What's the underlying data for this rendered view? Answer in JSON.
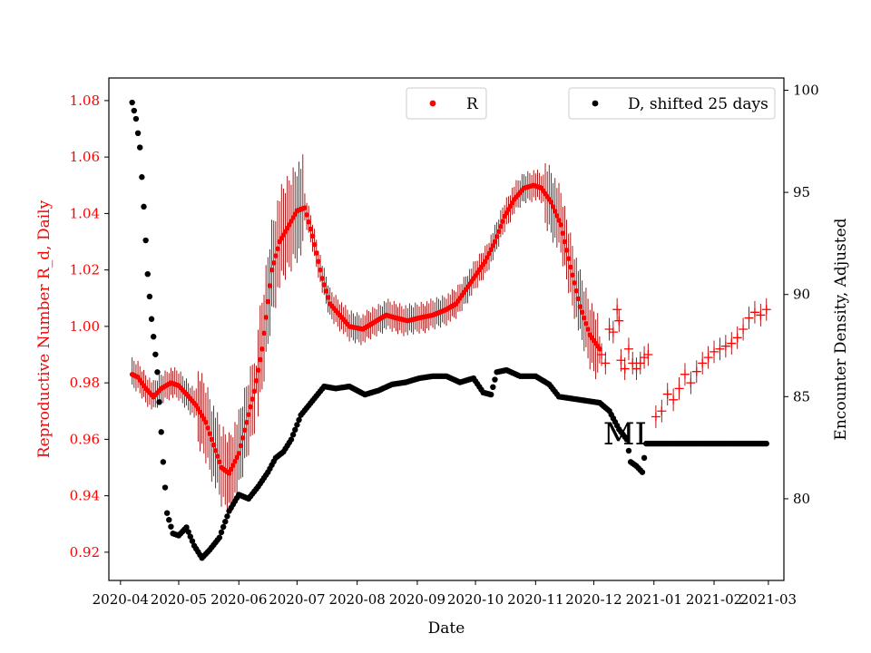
{
  "chart_data": {
    "type": "scatter",
    "title": "",
    "xlabel": "Date",
    "ylabel_left": "Reproductive Number R_d, Daily",
    "ylabel_right": "Encounter Density, Adjusted",
    "x_range": [
      "2020-03-26",
      "2021-03-09"
    ],
    "ylim_left": [
      0.91,
      1.088
    ],
    "ylim_right": [
      76.0,
      100.6
    ],
    "x_ticks": [
      "2020-04",
      "2020-05",
      "2020-06",
      "2020-07",
      "2020-08",
      "2020-09",
      "2020-10",
      "2020-11",
      "2020-12",
      "2021-01",
      "2021-02",
      "2021-03"
    ],
    "y_ticks_left": [
      "0.92",
      "0.94",
      "0.96",
      "0.98",
      "1.00",
      "1.02",
      "1.04",
      "1.06",
      "1.08"
    ],
    "y_ticks_right": [
      "80",
      "85",
      "90",
      "95",
      "100"
    ],
    "colors": {
      "r_series": "#ff0000",
      "r_error": "#a00000",
      "d_series": "#000000",
      "left_axis": "#ff0000"
    },
    "annotation": "MI",
    "annotation_at": {
      "x": "2020-12-17",
      "y": 0.962
    },
    "legend_r": {
      "label": "R",
      "placement": "upper-center"
    },
    "legend_d": {
      "label": "D, shifted 25 days",
      "placement": "upper-right"
    },
    "series_r": {
      "name": "R",
      "axis": "left",
      "anchors": [
        [
          "2020-04-07",
          0.983
        ],
        [
          "2020-04-10",
          0.982
        ],
        [
          "2020-04-14",
          0.978
        ],
        [
          "2020-04-18",
          0.975
        ],
        [
          "2020-04-22",
          0.978
        ],
        [
          "2020-04-27",
          0.98
        ],
        [
          "2020-05-01",
          0.979
        ],
        [
          "2020-05-05",
          0.976
        ],
        [
          "2020-05-10",
          0.972
        ],
        [
          "2020-05-15",
          0.966
        ],
        [
          "2020-05-19",
          0.958
        ],
        [
          "2020-05-23",
          0.95
        ],
        [
          "2020-05-27",
          0.948
        ],
        [
          "2020-06-01",
          0.955
        ],
        [
          "2020-06-05",
          0.966
        ],
        [
          "2020-06-09",
          0.977
        ],
        [
          "2020-06-13",
          0.992
        ],
        [
          "2020-06-18",
          1.02
        ],
        [
          "2020-06-22",
          1.03
        ],
        [
          "2020-06-27",
          1.036
        ],
        [
          "2020-07-01",
          1.041
        ],
        [
          "2020-07-05",
          1.042
        ],
        [
          "2020-07-09",
          1.032
        ],
        [
          "2020-07-14",
          1.017
        ],
        [
          "2020-07-18",
          1.008
        ],
        [
          "2020-07-23",
          1.004
        ],
        [
          "2020-07-28",
          1.0
        ],
        [
          "2020-08-04",
          0.999
        ],
        [
          "2020-08-11",
          1.002
        ],
        [
          "2020-08-16",
          1.004
        ],
        [
          "2020-08-21",
          1.003
        ],
        [
          "2020-08-27",
          1.002
        ],
        [
          "2020-09-02",
          1.003
        ],
        [
          "2020-09-09",
          1.004
        ],
        [
          "2020-09-16",
          1.006
        ],
        [
          "2020-09-21",
          1.008
        ],
        [
          "2020-09-26",
          1.013
        ],
        [
          "2020-10-01",
          1.018
        ],
        [
          "2020-10-06",
          1.023
        ],
        [
          "2020-10-11",
          1.03
        ],
        [
          "2020-10-16",
          1.039
        ],
        [
          "2020-10-21",
          1.045
        ],
        [
          "2020-10-26",
          1.049
        ],
        [
          "2020-10-31",
          1.05
        ],
        [
          "2020-11-04",
          1.049
        ],
        [
          "2020-11-09",
          1.044
        ],
        [
          "2020-11-14",
          1.036
        ],
        [
          "2020-11-19",
          1.021
        ],
        [
          "2020-11-24",
          1.007
        ],
        [
          "2020-11-29",
          0.997
        ],
        [
          "2020-12-04",
          0.992
        ]
      ],
      "error_band": 0.006,
      "crosses": [
        [
          "2020-12-05",
          0.99
        ],
        [
          "2020-12-07",
          0.987
        ],
        [
          "2020-12-09",
          0.999
        ],
        [
          "2020-12-11",
          0.998
        ],
        [
          "2020-12-13",
          1.006
        ],
        [
          "2020-12-14",
          1.002
        ],
        [
          "2020-12-15",
          0.988
        ],
        [
          "2020-12-17",
          0.985
        ],
        [
          "2020-12-19",
          0.992
        ],
        [
          "2020-12-21",
          0.987
        ],
        [
          "2020-12-23",
          0.985
        ],
        [
          "2020-12-25",
          0.987
        ],
        [
          "2020-12-27",
          0.989
        ],
        [
          "2020-12-29",
          0.99
        ],
        [
          "2021-01-02",
          0.968
        ],
        [
          "2021-01-05",
          0.97
        ],
        [
          "2021-01-08",
          0.976
        ],
        [
          "2021-01-11",
          0.974
        ],
        [
          "2021-01-14",
          0.978
        ],
        [
          "2021-01-17",
          0.983
        ],
        [
          "2021-01-20",
          0.98
        ],
        [
          "2021-01-23",
          0.984
        ],
        [
          "2021-01-26",
          0.987
        ],
        [
          "2021-01-29",
          0.989
        ],
        [
          "2021-02-01",
          0.991
        ],
        [
          "2021-02-04",
          0.992
        ],
        [
          "2021-02-07",
          0.993
        ],
        [
          "2021-02-10",
          0.994
        ],
        [
          "2021-02-13",
          0.996
        ],
        [
          "2021-02-16",
          0.999
        ],
        [
          "2021-02-19",
          1.003
        ],
        [
          "2021-02-22",
          1.005
        ],
        [
          "2021-02-25",
          1.004
        ],
        [
          "2021-02-28",
          1.006
        ]
      ]
    },
    "series_d": {
      "name": "D, shifted 25 days",
      "axis": "right",
      "anchors": [
        [
          "2020-04-07",
          99.4
        ],
        [
          "2020-04-09",
          98.6
        ],
        [
          "2020-04-11",
          97.2
        ],
        [
          "2020-04-13",
          94.3
        ],
        [
          "2020-04-15",
          91.0
        ],
        [
          "2020-04-17",
          88.8
        ],
        [
          "2020-04-20",
          86.2
        ],
        [
          "2020-04-23",
          81.8
        ],
        [
          "2020-04-25",
          79.3
        ],
        [
          "2020-04-28",
          78.3
        ],
        [
          "2020-05-01",
          78.2
        ],
        [
          "2020-05-05",
          78.6
        ],
        [
          "2020-05-09",
          77.7
        ],
        [
          "2020-05-13",
          77.1
        ],
        [
          "2020-05-17",
          77.5
        ],
        [
          "2020-05-22",
          78.1
        ],
        [
          "2020-05-27",
          79.4
        ],
        [
          "2020-06-01",
          80.2
        ],
        [
          "2020-06-06",
          80.0
        ],
        [
          "2020-06-11",
          80.6
        ],
        [
          "2020-06-16",
          81.3
        ],
        [
          "2020-06-20",
          82.0
        ],
        [
          "2020-06-24",
          82.3
        ],
        [
          "2020-06-28",
          82.9
        ],
        [
          "2020-07-03",
          84.1
        ],
        [
          "2020-07-09",
          84.8
        ],
        [
          "2020-07-15",
          85.5
        ],
        [
          "2020-07-21",
          85.4
        ],
        [
          "2020-07-28",
          85.5
        ],
        [
          "2020-08-05",
          85.1
        ],
        [
          "2020-08-12",
          85.3
        ],
        [
          "2020-08-19",
          85.6
        ],
        [
          "2020-08-26",
          85.7
        ],
        [
          "2020-09-02",
          85.9
        ],
        [
          "2020-09-09",
          86.0
        ],
        [
          "2020-09-16",
          86.0
        ],
        [
          "2020-09-23",
          85.7
        ],
        [
          "2020-09-30",
          85.9
        ],
        [
          "2020-10-05",
          85.2
        ],
        [
          "2020-10-09",
          85.1
        ],
        [
          "2020-10-12",
          86.2
        ],
        [
          "2020-10-17",
          86.3
        ],
        [
          "2020-10-24",
          86.0
        ],
        [
          "2020-11-01",
          86.0
        ],
        [
          "2020-11-08",
          85.6
        ],
        [
          "2020-11-13",
          85.0
        ],
        [
          "2020-11-20",
          84.9
        ],
        [
          "2020-11-27",
          84.8
        ],
        [
          "2020-12-04",
          84.7
        ],
        [
          "2020-12-09",
          84.3
        ],
        [
          "2020-12-14",
          83.4
        ],
        [
          "2020-12-18",
          82.9
        ],
        [
          "2020-12-20",
          81.8
        ],
        [
          "2020-12-23",
          81.6
        ],
        [
          "2020-12-26",
          81.3
        ],
        [
          "2020-12-28",
          82.7
        ],
        [
          "2021-01-31",
          82.7
        ],
        [
          "2021-02-28",
          82.7
        ]
      ]
    }
  }
}
